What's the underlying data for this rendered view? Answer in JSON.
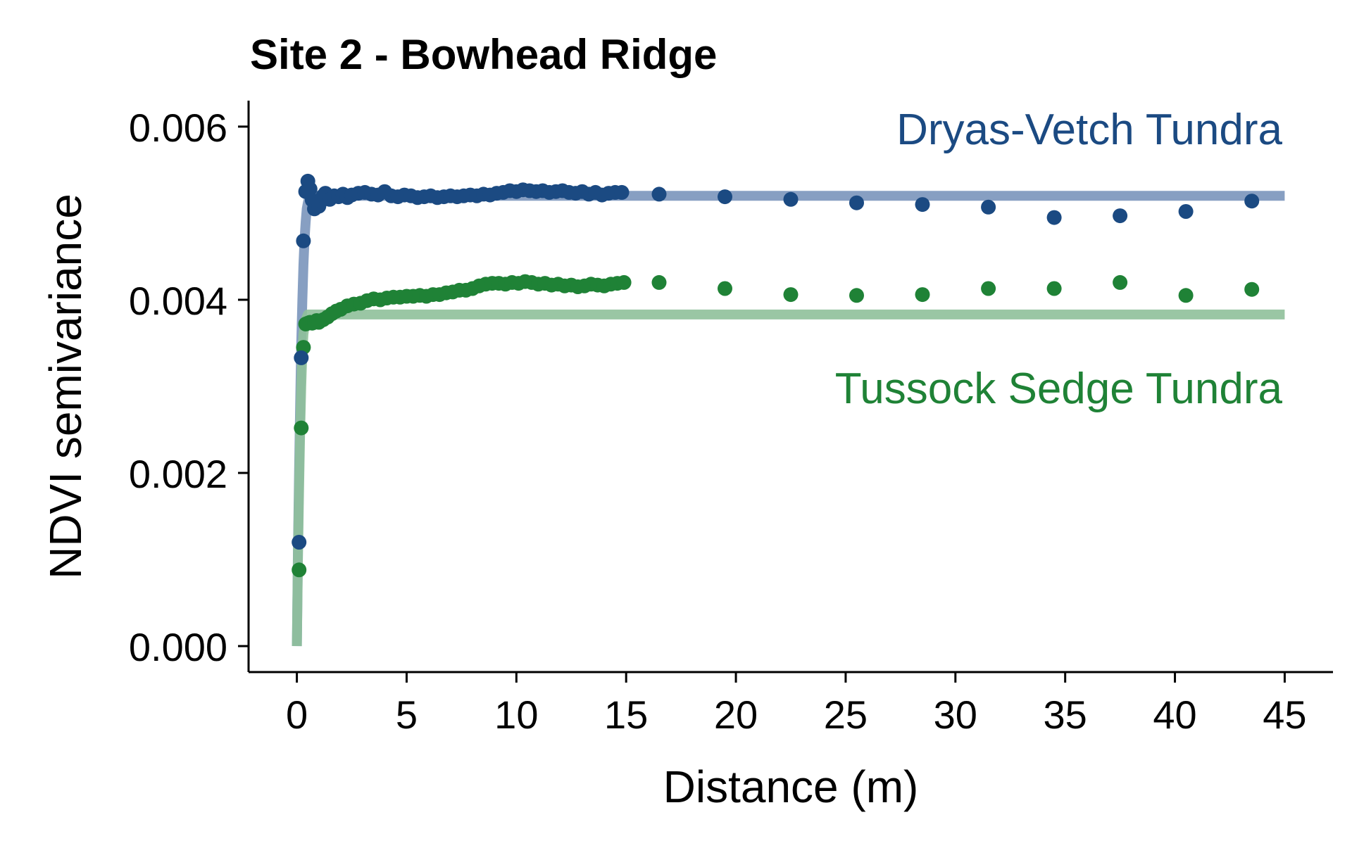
{
  "chart_data": {
    "type": "scatter",
    "title": "Site 2 - Bowhead Ridge",
    "xlabel": "Distance (m)",
    "ylabel": "NDVI semivariance",
    "xlim": [
      -2.2,
      47.2
    ],
    "ylim": [
      -0.0003,
      0.0063
    ],
    "xticks": [
      0,
      5,
      10,
      15,
      20,
      25,
      30,
      35,
      40,
      45
    ],
    "xtick_labels": [
      "0",
      "5",
      "10",
      "15",
      "20",
      "25",
      "30",
      "35",
      "40",
      "45"
    ],
    "yticks": [
      0,
      0.002,
      0.004,
      0.006
    ],
    "ytick_labels": [
      "0.000",
      "0.002",
      "0.004",
      "0.006"
    ],
    "grid": false,
    "series": [
      {
        "name": "Dryas-Vetch Tundra",
        "color": "#1b4a82",
        "line_color": "#7a95bb",
        "empirical": {
          "x": [
            0.1,
            0.2,
            0.3,
            0.4,
            0.5,
            0.6,
            0.7,
            0.8,
            0.9,
            1.0,
            1.1,
            1.2,
            1.3,
            1.5,
            1.7,
            1.9,
            2.1,
            2.3,
            2.5,
            2.8,
            3.1,
            3.4,
            3.7,
            4.0,
            4.3,
            4.6,
            4.9,
            5.2,
            5.5,
            5.8,
            6.1,
            6.4,
            6.7,
            7.0,
            7.3,
            7.6,
            7.9,
            8.2,
            8.5,
            8.8,
            9.1,
            9.4,
            9.7,
            10.0,
            10.3,
            10.6,
            10.9,
            11.2,
            11.5,
            11.8,
            12.1,
            12.4,
            12.7,
            13.0,
            13.3,
            13.6,
            13.9,
            14.2,
            14.5,
            14.8,
            16.5,
            19.5,
            22.5,
            25.5,
            28.5,
            31.5,
            34.5,
            37.5,
            40.5,
            43.5
          ],
          "y": [
            0.0012,
            0.00333,
            0.00468,
            0.00525,
            0.00537,
            0.00528,
            0.00515,
            0.00505,
            0.0051,
            0.00508,
            0.00514,
            0.0052,
            0.00523,
            0.00516,
            0.0052,
            0.00519,
            0.00522,
            0.00518,
            0.00521,
            0.00523,
            0.00524,
            0.00522,
            0.00521,
            0.00525,
            0.0052,
            0.00519,
            0.00521,
            0.0052,
            0.00518,
            0.00519,
            0.0052,
            0.00518,
            0.00519,
            0.0052,
            0.00519,
            0.0052,
            0.00521,
            0.0052,
            0.00522,
            0.00521,
            0.00523,
            0.00524,
            0.00526,
            0.00525,
            0.00527,
            0.00526,
            0.00525,
            0.00526,
            0.00524,
            0.00525,
            0.00526,
            0.00524,
            0.00523,
            0.00525,
            0.00522,
            0.00524,
            0.00521,
            0.00523,
            0.00524,
            0.00524,
            0.00522,
            0.00519,
            0.00516,
            0.00512,
            0.0051,
            0.00507,
            0.00495,
            0.00497,
            0.00502,
            0.00514
          ]
        },
        "model": {
          "x": [
            0,
            0.05,
            0.1,
            0.15,
            0.2,
            0.25,
            0.3,
            0.35,
            0.4,
            0.45,
            0.5,
            0.55,
            0.6,
            45
          ],
          "y": [
            0,
            0.0011,
            0.002,
            0.0028,
            0.0035,
            0.004,
            0.0044,
            0.0047,
            0.0049,
            0.00505,
            0.00512,
            0.00517,
            0.0052,
            0.0052
          ]
        }
      },
      {
        "name": "Tussock Sedge Tundra",
        "color": "#1f8236",
        "line_color": "#8fc09a",
        "empirical": {
          "x": [
            0.1,
            0.2,
            0.3,
            0.4,
            0.5,
            0.6,
            0.7,
            0.8,
            0.9,
            1.0,
            1.2,
            1.4,
            1.6,
            1.8,
            2.0,
            2.3,
            2.6,
            2.9,
            3.2,
            3.5,
            3.8,
            4.1,
            4.4,
            4.7,
            5.0,
            5.3,
            5.6,
            5.9,
            6.2,
            6.5,
            6.8,
            7.1,
            7.4,
            7.7,
            8.0,
            8.3,
            8.6,
            8.9,
            9.2,
            9.5,
            9.8,
            10.1,
            10.4,
            10.7,
            11.0,
            11.3,
            11.6,
            11.9,
            12.2,
            12.5,
            12.8,
            13.1,
            13.4,
            13.7,
            14.0,
            14.3,
            14.6,
            14.9,
            16.5,
            19.5,
            22.5,
            25.5,
            28.5,
            31.5,
            34.5,
            37.5,
            40.5,
            43.5
          ],
          "y": [
            0.00088,
            0.00252,
            0.00345,
            0.00372,
            0.00373,
            0.00374,
            0.00373,
            0.00374,
            0.00376,
            0.00374,
            0.00377,
            0.0038,
            0.00384,
            0.00387,
            0.00389,
            0.00393,
            0.00395,
            0.00396,
            0.00399,
            0.00401,
            0.004,
            0.00402,
            0.00403,
            0.00403,
            0.00404,
            0.00404,
            0.00405,
            0.00404,
            0.00406,
            0.00406,
            0.00408,
            0.00409,
            0.00411,
            0.00411,
            0.00413,
            0.00416,
            0.00418,
            0.00419,
            0.00419,
            0.00418,
            0.0042,
            0.00419,
            0.00421,
            0.0042,
            0.00418,
            0.00419,
            0.00417,
            0.00418,
            0.00416,
            0.00417,
            0.00415,
            0.00416,
            0.00418,
            0.00417,
            0.00416,
            0.00418,
            0.00419,
            0.0042,
            0.0042,
            0.00413,
            0.00406,
            0.00405,
            0.00406,
            0.00413,
            0.00413,
            0.0042,
            0.00405,
            0.00412
          ]
        },
        "model": {
          "x": [
            0,
            0.05,
            0.1,
            0.15,
            0.2,
            0.25,
            0.3,
            0.35,
            0.4,
            0.45,
            0.5,
            45
          ],
          "y": [
            0,
            0.001,
            0.0018,
            0.0025,
            0.003,
            0.0034,
            0.0036,
            0.0037,
            0.00377,
            0.0038,
            0.00383,
            0.00383
          ]
        }
      }
    ]
  }
}
